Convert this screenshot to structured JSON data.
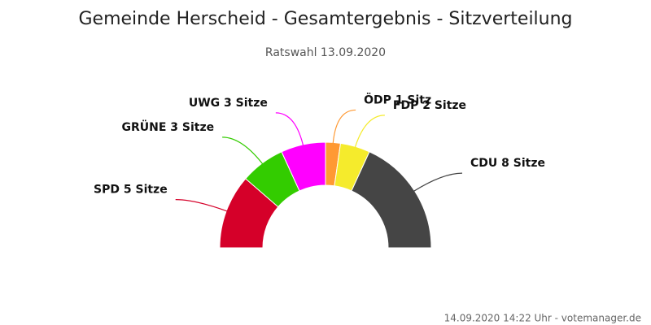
{
  "chart_data": {
    "type": "semi-donut",
    "title": "Gemeinde Herscheid - Gesamtergebnis - Sitzverteilung",
    "subtitle": "Ratswahl 13.09.2020",
    "values": [
      5,
      3,
      3,
      1,
      2,
      8
    ],
    "value_labels": [
      "SPD 5 Sitze",
      "GRÜNE 3 Sitze",
      "UWG 3 Sitze",
      "ÖDP 1 Sitz",
      "FDP 2 Sitze",
      "CDU 8 Sitze"
    ],
    "colors": [
      "#d50029",
      "#33cc00",
      "#ff00ff",
      "#ff9933",
      "#f5eb2c",
      "#454545"
    ],
    "credit": "14.09.2020 14:22 Uhr - votemanager.de"
  }
}
